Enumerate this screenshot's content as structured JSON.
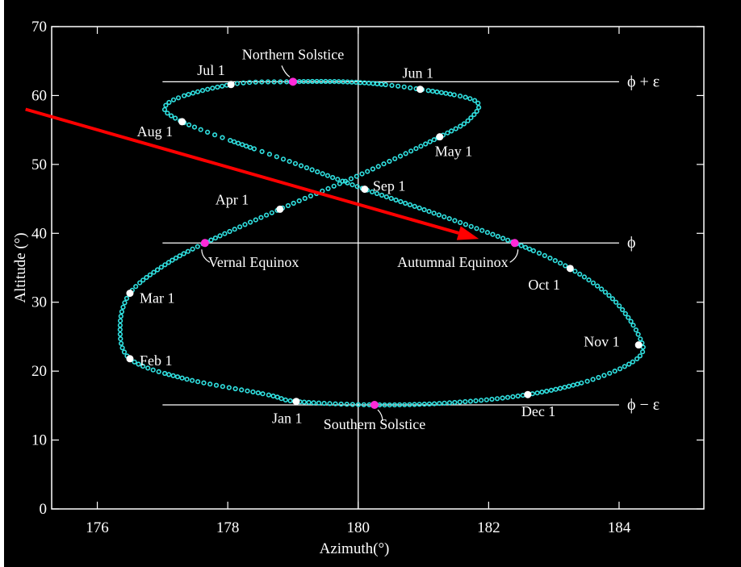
{
  "chart_data": {
    "type": "scatter",
    "title": "",
    "xlabel": "Azimuth(°)",
    "ylabel": "Altitude (°)",
    "xlim": [
      175.3,
      185.3
    ],
    "ylim": [
      0,
      70
    ],
    "x_ticks": [
      "176",
      "178",
      "180",
      "182",
      "184"
    ],
    "y_ticks": [
      "0",
      "10",
      "20",
      "30",
      "40",
      "50",
      "60",
      "70"
    ],
    "colors": {
      "background": "#000000",
      "curve": "#30e0e0",
      "solstice_equinox_marker": "#ff2ad8",
      "month_marker": "#ffffff",
      "arrow": "#ff0000"
    },
    "analemma": [
      {
        "x": 180.25,
        "y": 15.1
      },
      {
        "x": 181.4,
        "y": 15.4
      },
      {
        "x": 182.6,
        "y": 16.6
      },
      {
        "x": 183.6,
        "y": 18.8
      },
      {
        "x": 184.3,
        "y": 22.0
      },
      {
        "x": 184.3,
        "y": 25.2
      },
      {
        "x": 183.9,
        "y": 30.5
      },
      {
        "x": 183.25,
        "y": 34.9
      },
      {
        "x": 182.4,
        "y": 38.6
      },
      {
        "x": 181.2,
        "y": 42.8
      },
      {
        "x": 180.1,
        "y": 46.4
      },
      {
        "x": 178.9,
        "y": 50.6
      },
      {
        "x": 177.3,
        "y": 56.2
      },
      {
        "x": 177.1,
        "y": 59.0
      },
      {
        "x": 178.05,
        "y": 61.6
      },
      {
        "x": 179.0,
        "y": 62.0
      },
      {
        "x": 180.0,
        "y": 61.9
      },
      {
        "x": 180.95,
        "y": 60.9
      },
      {
        "x": 181.8,
        "y": 59.2
      },
      {
        "x": 181.7,
        "y": 56.5
      },
      {
        "x": 181.25,
        "y": 54.0
      },
      {
        "x": 180.1,
        "y": 48.8
      },
      {
        "x": 178.8,
        "y": 43.5
      },
      {
        "x": 177.65,
        "y": 38.6
      },
      {
        "x": 177.0,
        "y": 35.2
      },
      {
        "x": 176.5,
        "y": 31.3
      },
      {
        "x": 176.35,
        "y": 26.5
      },
      {
        "x": 176.5,
        "y": 21.8
      },
      {
        "x": 177.3,
        "y": 19.0
      },
      {
        "x": 178.6,
        "y": 16.6
      },
      {
        "x": 179.05,
        "y": 15.6
      },
      {
        "x": 180.25,
        "y": 15.1
      }
    ],
    "month_points": [
      {
        "label": "Jan 1",
        "x": 179.05,
        "y": 15.6
      },
      {
        "label": "Feb 1",
        "x": 176.5,
        "y": 21.8
      },
      {
        "label": "Mar 1",
        "x": 176.5,
        "y": 31.3
      },
      {
        "label": "Apr 1",
        "x": 178.8,
        "y": 43.5
      },
      {
        "label": "May 1",
        "x": 181.25,
        "y": 54.0
      },
      {
        "label": "Jun 1",
        "x": 180.95,
        "y": 60.9
      },
      {
        "label": "Jul 1",
        "x": 178.05,
        "y": 61.6
      },
      {
        "label": "Aug 1",
        "x": 177.3,
        "y": 56.2
      },
      {
        "label": "Sep 1",
        "x": 180.1,
        "y": 46.4
      },
      {
        "label": "Oct 1",
        "x": 183.25,
        "y": 34.9
      },
      {
        "label": "Nov 1",
        "x": 184.3,
        "y": 23.8
      },
      {
        "label": "Dec 1",
        "x": 182.6,
        "y": 16.6
      }
    ],
    "key_points": [
      {
        "label": "Northern Solstice",
        "x": 179.0,
        "y": 62.0
      },
      {
        "label": "Vernal Equinox",
        "x": 177.65,
        "y": 38.6
      },
      {
        "label": "Autumnal Equinox",
        "x": 182.4,
        "y": 38.6
      },
      {
        "label": "Southern Solstice",
        "x": 180.25,
        "y": 15.1
      }
    ],
    "reference_lines": [
      {
        "label": "ϕ + ε",
        "y": 62.0,
        "x_from": 177.0,
        "x_to": 184.0
      },
      {
        "label": "ϕ",
        "y": 38.6,
        "x_from": 177.0,
        "x_to": 184.0
      },
      {
        "label": "ϕ − ε",
        "y": 15.1,
        "x_from": 177.0,
        "x_to": 184.0
      }
    ],
    "vertical_line_x": 180,
    "arrow": {
      "from": [
        174.9,
        58.0
      ],
      "to": [
        181.85,
        39.2
      ]
    }
  }
}
